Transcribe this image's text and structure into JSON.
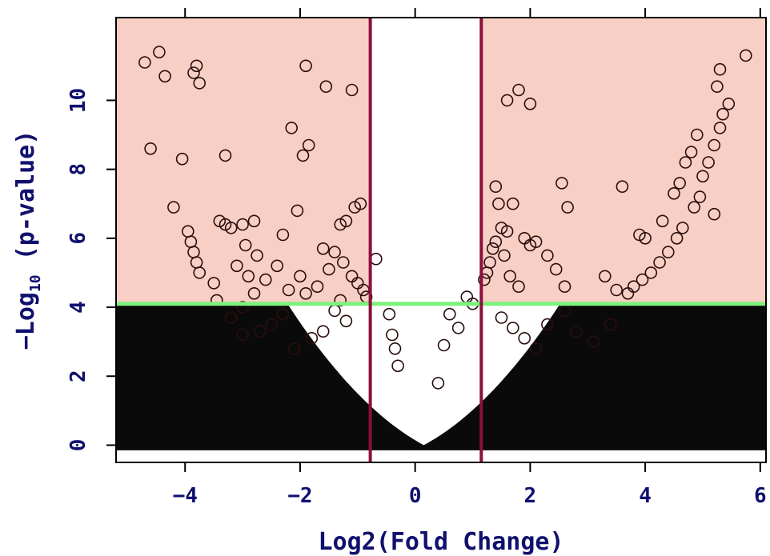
{
  "chart_data": {
    "type": "scatter",
    "title": "",
    "xlabel": "Log2(Fold Change)",
    "ylabel": "-Log10 (p-value)",
    "ylabel_parts": {
      "prefix": "−Log",
      "sub": "10",
      "suffix": " (p-value)"
    },
    "xlim": [
      -5.2,
      6.1
    ],
    "ylim": [
      -0.5,
      12.4
    ],
    "x_ticks": [
      -4,
      -2,
      0,
      2,
      4,
      6
    ],
    "x_tick_labels": [
      "−4",
      "−2",
      "0",
      "2",
      "4",
      "6"
    ],
    "y_ticks": [
      0,
      2,
      4,
      6,
      8,
      10
    ],
    "y_tick_labels": [
      "0",
      "2",
      "4",
      "6",
      "8",
      "10"
    ],
    "grid": false,
    "significance_region_color": "#f8cfc4",
    "point_color": "#000000",
    "threshold_lines": {
      "horizontal": {
        "y": 4.1,
        "color": "#7df27d"
      },
      "vertical": [
        {
          "x": -0.78,
          "color": "#8b0f3c"
        },
        {
          "x": 1.15,
          "color": "#8b0f3c"
        }
      ]
    },
    "series": [
      {
        "points": [
          [
            -4.7,
            11.1
          ],
          [
            -4.45,
            11.4
          ],
          [
            -4.35,
            10.7
          ],
          [
            -4.6,
            8.6
          ],
          [
            -4.05,
            8.3
          ],
          [
            -4.2,
            6.9
          ],
          [
            -3.95,
            6.2
          ],
          [
            -3.9,
            5.9
          ],
          [
            -3.85,
            5.6
          ],
          [
            -3.8,
            5.3
          ],
          [
            -3.75,
            5.0
          ],
          [
            -3.8,
            11.0
          ],
          [
            -3.85,
            10.8
          ],
          [
            -3.75,
            10.5
          ],
          [
            -3.3,
            8.4
          ],
          [
            -3.4,
            6.5
          ],
          [
            -3.3,
            6.4
          ],
          [
            -3.2,
            6.3
          ],
          [
            -3.1,
            5.2
          ],
          [
            -2.95,
            5.8
          ],
          [
            -2.8,
            6.5
          ],
          [
            -3.0,
            6.4
          ],
          [
            -2.75,
            5.5
          ],
          [
            -2.9,
            4.9
          ],
          [
            -3.5,
            4.7
          ],
          [
            -3.45,
            4.2
          ],
          [
            -2.3,
            6.1
          ],
          [
            -2.15,
            9.2
          ],
          [
            -2.05,
            6.8
          ],
          [
            -1.95,
            8.4
          ],
          [
            -1.85,
            8.7
          ],
          [
            -1.9,
            11.0
          ],
          [
            -1.55,
            10.4
          ],
          [
            -1.1,
            10.3
          ],
          [
            -0.95,
            7.0
          ],
          [
            -1.05,
            6.9
          ],
          [
            -1.2,
            6.5
          ],
          [
            -1.3,
            6.4
          ],
          [
            -1.6,
            5.7
          ],
          [
            -1.4,
            5.6
          ],
          [
            -1.25,
            5.3
          ],
          [
            -1.5,
            5.1
          ],
          [
            -1.1,
            4.9
          ],
          [
            -1.0,
            4.7
          ],
          [
            -0.9,
            4.5
          ],
          [
            -0.85,
            4.3
          ],
          [
            -2.6,
            4.8
          ],
          [
            -2.4,
            5.2
          ],
          [
            -2.2,
            4.5
          ],
          [
            -2.0,
            4.9
          ],
          [
            -1.9,
            4.4
          ],
          [
            -1.7,
            4.6
          ],
          [
            -1.3,
            4.2
          ],
          [
            -2.8,
            4.4
          ],
          [
            -3.0,
            4.0
          ],
          [
            -0.68,
            5.4
          ],
          [
            -0.45,
            3.8
          ],
          [
            -0.4,
            3.2
          ],
          [
            -0.35,
            2.8
          ],
          [
            -0.3,
            2.3
          ],
          [
            1.4,
            7.5
          ],
          [
            1.45,
            7.0
          ],
          [
            1.6,
            6.2
          ],
          [
            1.7,
            7.0
          ],
          [
            1.5,
            6.3
          ],
          [
            1.4,
            5.9
          ],
          [
            1.35,
            5.7
          ],
          [
            1.55,
            5.5
          ],
          [
            1.3,
            5.3
          ],
          [
            1.25,
            5.0
          ],
          [
            1.2,
            4.8
          ],
          [
            1.65,
            4.9
          ],
          [
            1.8,
            4.6
          ],
          [
            1.6,
            10.0
          ],
          [
            1.8,
            10.3
          ],
          [
            2.0,
            9.9
          ],
          [
            1.9,
            6.0
          ],
          [
            2.0,
            5.8
          ],
          [
            2.1,
            5.9
          ],
          [
            2.55,
            7.6
          ],
          [
            2.65,
            6.9
          ],
          [
            2.6,
            4.6
          ],
          [
            2.45,
            5.1
          ],
          [
            2.3,
            5.5
          ],
          [
            3.6,
            7.5
          ],
          [
            3.3,
            4.9
          ],
          [
            3.5,
            4.5
          ],
          [
            3.9,
            6.1
          ],
          [
            4.0,
            6.0
          ],
          [
            4.3,
            6.5
          ],
          [
            4.5,
            7.3
          ],
          [
            4.6,
            7.6
          ],
          [
            4.7,
            8.2
          ],
          [
            4.8,
            8.5
          ],
          [
            4.9,
            9.0
          ],
          [
            5.0,
            7.8
          ],
          [
            5.1,
            8.2
          ],
          [
            5.2,
            8.7
          ],
          [
            5.3,
            9.2
          ],
          [
            5.35,
            9.6
          ],
          [
            5.45,
            9.9
          ],
          [
            5.25,
            10.4
          ],
          [
            5.3,
            10.9
          ],
          [
            5.75,
            11.3
          ],
          [
            5.2,
            6.7
          ],
          [
            4.95,
            7.2
          ],
          [
            4.85,
            6.9
          ],
          [
            4.65,
            6.3
          ],
          [
            4.55,
            6.0
          ],
          [
            4.4,
            5.6
          ],
          [
            4.25,
            5.3
          ],
          [
            4.1,
            5.0
          ],
          [
            3.95,
            4.8
          ],
          [
            3.8,
            4.6
          ],
          [
            3.7,
            4.4
          ],
          [
            0.6,
            3.8
          ],
          [
            0.9,
            4.3
          ],
          [
            1.0,
            4.1
          ],
          [
            0.75,
            3.4
          ],
          [
            0.5,
            2.9
          ],
          [
            -2.5,
            3.5
          ],
          [
            -2.3,
            3.8
          ],
          [
            -2.7,
            3.3
          ],
          [
            -1.4,
            3.9
          ],
          [
            -1.2,
            3.6
          ],
          [
            -1.6,
            3.3
          ],
          [
            -1.8,
            3.1
          ],
          [
            -2.1,
            2.8
          ],
          [
            -3.2,
            3.7
          ],
          [
            -3.0,
            3.2
          ],
          [
            1.5,
            3.7
          ],
          [
            1.7,
            3.4
          ],
          [
            1.9,
            3.1
          ],
          [
            2.1,
            2.8
          ],
          [
            2.3,
            3.5
          ],
          [
            2.6,
            3.9
          ],
          [
            2.8,
            3.3
          ],
          [
            3.1,
            3.0
          ],
          [
            3.4,
            3.5
          ],
          [
            0.4,
            1.8
          ]
        ]
      }
    ]
  }
}
